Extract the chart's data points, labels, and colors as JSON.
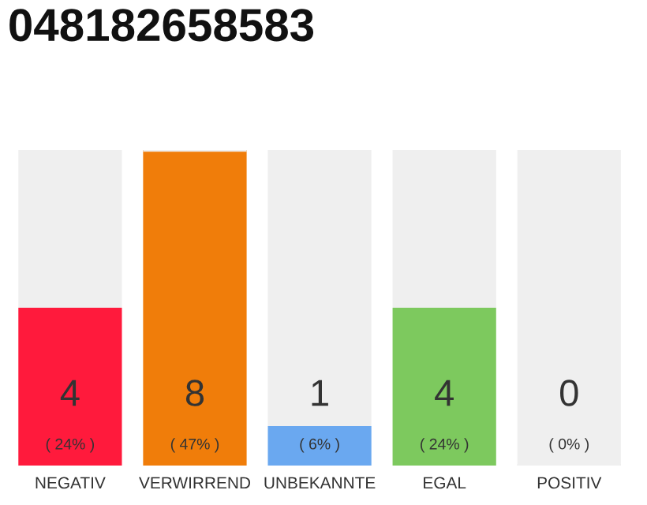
{
  "chart_data": {
    "type": "bar",
    "title": "048182658583",
    "stacked": true,
    "categories": [
      "NEGATIV",
      "VERWIRREND",
      "UNBEKANNTE",
      "EGAL",
      "POSITIV"
    ],
    "series": [
      {
        "colors": [
          "#ff1a3c",
          "#f07d0a",
          "#6aa8f0",
          "#7dc95e",
          "#e0e0e0"
        ],
        "values": [
          4,
          8,
          1,
          4,
          0
        ],
        "value_labels": [
          "4\n( 24% )",
          "8\n( 47% )",
          "1\n( 6% )",
          "4\n( 24% )",
          "0\n( 0% )"
        ]
      },
      {
        "color": "#efefef",
        "values": [
          4,
          0,
          7,
          4,
          8
        ]
      }
    ],
    "ylim": [
      0,
      8
    ],
    "grid": false,
    "legend": false
  }
}
